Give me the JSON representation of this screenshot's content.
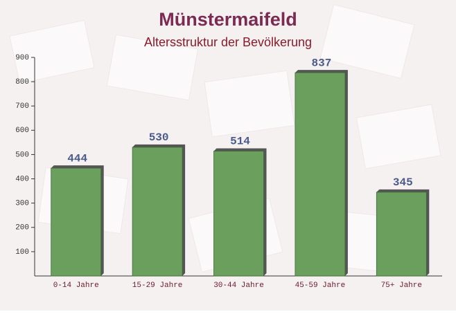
{
  "chart_data": {
    "type": "bar",
    "title": "Münstermaifeld",
    "subtitle": "Altersstruktur der Bevölkerung",
    "categories": [
      "0-14 Jahre",
      "15-29 Jahre",
      "30-44 Jahre",
      "45-59 Jahre",
      "75+ Jahre"
    ],
    "values": [
      444,
      530,
      514,
      837,
      345
    ],
    "color": "#6a9f5e",
    "ylim": [
      0,
      900
    ],
    "yticks": [
      100,
      200,
      300,
      400,
      500,
      600,
      700,
      800,
      900
    ]
  }
}
